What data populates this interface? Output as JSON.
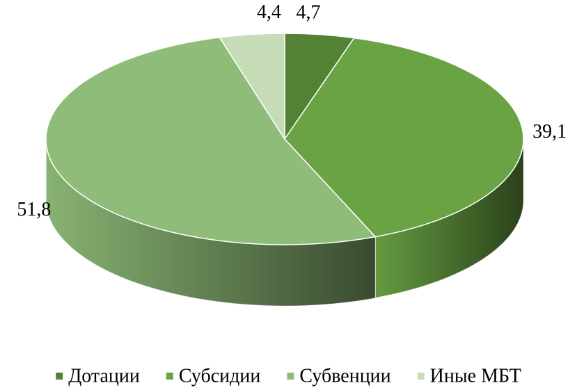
{
  "chart_data": {
    "type": "pie",
    "categories": [
      "Дотации",
      "Субсидии",
      "Субвенции",
      "Иные МБТ"
    ],
    "values": [
      4.7,
      39.1,
      51.8,
      4.4
    ],
    "value_labels": [
      "4,7",
      "39,1",
      "51,8",
      "4,4"
    ],
    "colors": [
      "#548235",
      "#6aa343",
      "#8fbc78",
      "#c5dcb6"
    ],
    "legend": "bottom"
  }
}
